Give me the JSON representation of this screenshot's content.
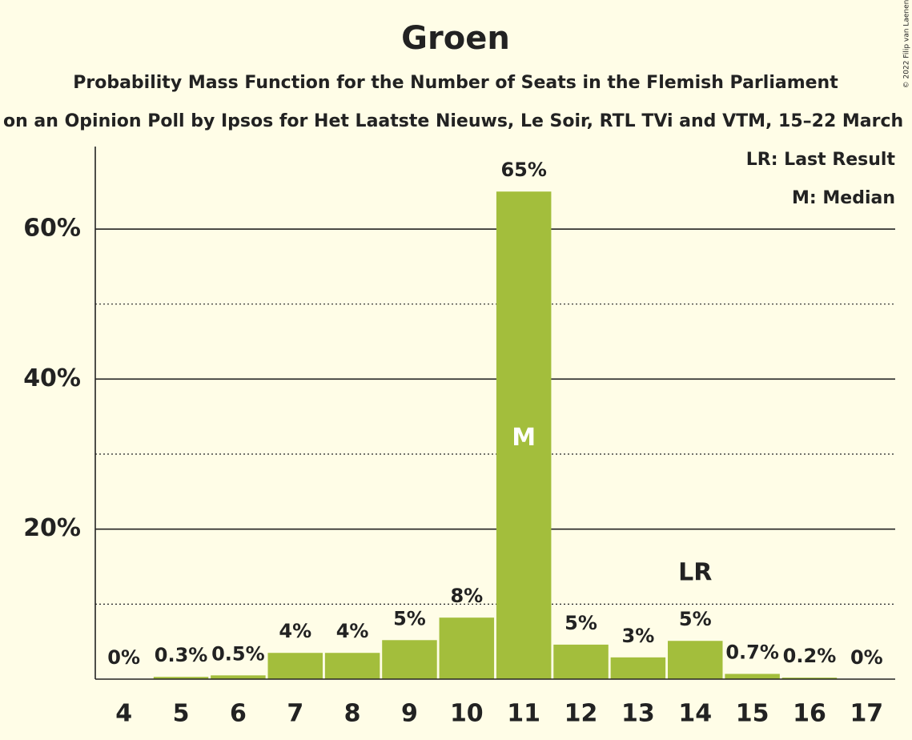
{
  "chart_data": {
    "type": "bar",
    "title": "Groen",
    "subtitle": "Probability Mass Function for the Number of Seats in the Flemish Parliament",
    "subtitle2": "on an Opinion Poll by Ipsos for Het Laatste Nieuws, Le Soir, RTL TVi and VTM, 15–22 March",
    "copyright": "© 2022 Filip van Laenen",
    "categories": [
      "4",
      "5",
      "6",
      "7",
      "8",
      "9",
      "10",
      "11",
      "12",
      "13",
      "14",
      "15",
      "16",
      "17"
    ],
    "values": [
      0,
      0.3,
      0.5,
      3.5,
      3.5,
      5.2,
      8.2,
      65,
      4.6,
      2.9,
      5.1,
      0.7,
      0.2,
      0
    ],
    "value_labels": [
      "0%",
      "0.3%",
      "0.5%",
      "4%",
      "4%",
      "5%",
      "8%",
      "65%",
      "5%",
      "3%",
      "5%",
      "0.7%",
      "0.2%",
      "0%"
    ],
    "color": "#a3be3c",
    "ylim": [
      0,
      71
    ],
    "yticks": [
      {
        "value": 20,
        "label": "20%"
      },
      {
        "value": 40,
        "label": "40%"
      },
      {
        "value": 60,
        "label": "60%"
      }
    ],
    "minor_grid": [
      10,
      30,
      50
    ],
    "grid": true,
    "median": "11",
    "median_label": "M",
    "last_result": "14",
    "last_result_label": "LR",
    "legend": [
      "LR: Last Result",
      "M: Median"
    ]
  }
}
